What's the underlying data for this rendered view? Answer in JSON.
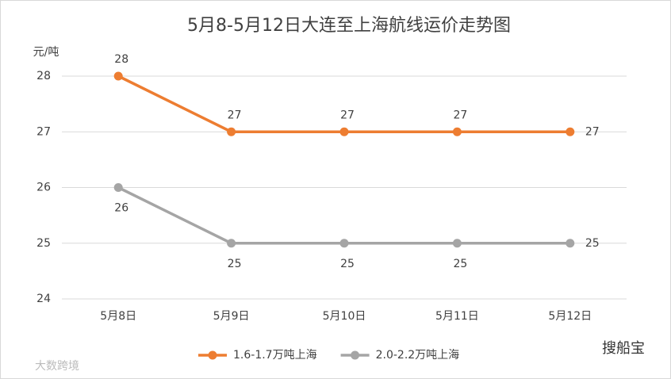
{
  "chart_data": {
    "type": "line",
    "title": "5月8-5月12日大连至上海航线运价走势图",
    "y_label": "元/吨",
    "categories": [
      "5月8日",
      "5月9日",
      "5月10日",
      "5月11日",
      "5月12日"
    ],
    "series": [
      {
        "name": "1.6-1.7万吨上海",
        "color": "#ed7d31",
        "values": [
          28,
          27,
          27,
          27,
          27
        ]
      },
      {
        "name": "2.0-2.2万吨上海",
        "color": "#a5a5a5",
        "values": [
          26,
          25,
          25,
          25,
          25
        ]
      }
    ],
    "ylim": [
      24,
      28
    ],
    "yticks": [
      24,
      25,
      26,
      27,
      28
    ],
    "grid": true,
    "legend": "bottom",
    "watermarks": [
      "搜船宝",
      "大数跨境"
    ]
  }
}
